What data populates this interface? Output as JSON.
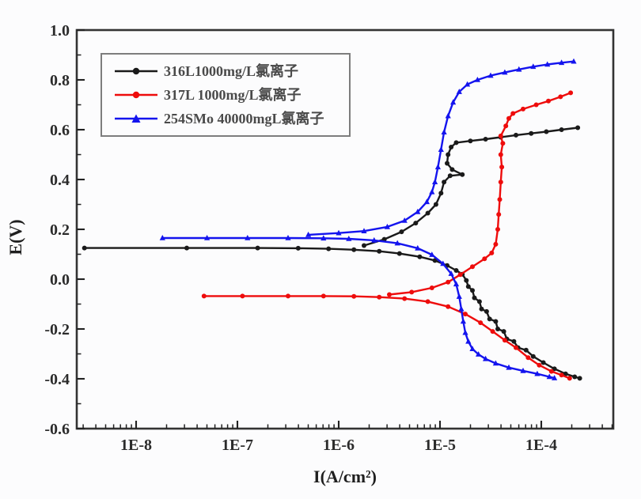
{
  "chart_data": {
    "type": "line",
    "title": "",
    "xlabel": "I(A/cm²)",
    "ylabel": "E(V)",
    "x_scale": "log10",
    "xlim_log10": [
      -8.586,
      -3.29
    ],
    "ylim": [
      -0.6,
      1.0
    ],
    "grid": false,
    "legend_position": "top-left",
    "frame_color": "#333333",
    "tick_label_color": "#2b2b2b",
    "x_ticks": [
      {
        "log10": -8,
        "label": "1E-8"
      },
      {
        "log10": -7,
        "label": "1E-7"
      },
      {
        "log10": -6,
        "label": "1E-6"
      },
      {
        "log10": -5,
        "label": "1E-5"
      },
      {
        "log10": -4,
        "label": "1E-4"
      }
    ],
    "y_ticks": [
      {
        "value": 1.0,
        "label": "1.0"
      },
      {
        "value": 0.8,
        "label": "0.8"
      },
      {
        "value": 0.6,
        "label": "0.6"
      },
      {
        "value": 0.4,
        "label": "0.4"
      },
      {
        "value": 0.2,
        "label": "0.2"
      },
      {
        "value": 0.0,
        "label": "0.0"
      },
      {
        "value": -0.2,
        "label": "-0.2"
      },
      {
        "value": -0.4,
        "label": "-0.4"
      },
      {
        "value": -0.6,
        "label": "-0.6"
      }
    ],
    "y_minor_step": 0.1,
    "series": [
      {
        "name": "316L1000mg/L氯离子",
        "color": "#1a1a1a",
        "marker": "circle",
        "corrosion_potential_V": 0.12,
        "branches": [
          [
            [
              -8.51,
              0.125
            ],
            [
              -7.5,
              0.125
            ],
            [
              -6.8,
              0.125
            ],
            [
              -6.4,
              0.124
            ],
            [
              -6.1,
              0.122
            ],
            [
              -5.85,
              0.118
            ],
            [
              -5.6,
              0.112
            ],
            [
              -5.4,
              0.103
            ],
            [
              -5.2,
              0.09
            ],
            [
              -5.05,
              0.075
            ],
            [
              -4.93,
              0.055
            ],
            [
              -4.84,
              0.035
            ],
            [
              -4.78,
              0.02
            ],
            [
              -4.74,
              -0.005
            ],
            [
              -4.72,
              -0.03
            ],
            [
              -4.68,
              -0.045
            ],
            [
              -4.66,
              -0.075
            ],
            [
              -4.61,
              -0.09
            ],
            [
              -4.59,
              -0.12
            ],
            [
              -4.54,
              -0.13
            ],
            [
              -4.51,
              -0.16
            ],
            [
              -4.45,
              -0.17
            ],
            [
              -4.43,
              -0.2
            ],
            [
              -4.37,
              -0.21
            ],
            [
              -4.34,
              -0.24
            ],
            [
              -4.27,
              -0.25
            ],
            [
              -4.23,
              -0.275
            ],
            [
              -4.15,
              -0.285
            ],
            [
              -4.08,
              -0.31
            ],
            [
              -3.98,
              -0.335
            ],
            [
              -3.87,
              -0.36
            ],
            [
              -3.76,
              -0.38
            ],
            [
              -3.67,
              -0.392
            ],
            [
              -3.62,
              -0.398
            ]
          ],
          [
            [
              -5.75,
              0.135
            ],
            [
              -5.55,
              0.16
            ],
            [
              -5.38,
              0.19
            ],
            [
              -5.24,
              0.225
            ],
            [
              -5.12,
              0.265
            ],
            [
              -5.04,
              0.3
            ],
            [
              -4.99,
              0.345
            ],
            [
              -4.96,
              0.39
            ],
            [
              -4.9,
              0.415
            ],
            [
              -4.78,
              0.42
            ],
            [
              -4.88,
              0.44
            ],
            [
              -4.93,
              0.465
            ],
            [
              -4.92,
              0.5
            ],
            [
              -4.89,
              0.53
            ],
            [
              -4.84,
              0.548
            ],
            [
              -4.7,
              0.555
            ],
            [
              -4.55,
              0.562
            ],
            [
              -4.4,
              0.57
            ],
            [
              -4.25,
              0.578
            ],
            [
              -4.1,
              0.585
            ],
            [
              -3.95,
              0.592
            ],
            [
              -3.8,
              0.6
            ],
            [
              -3.64,
              0.608
            ]
          ]
        ]
      },
      {
        "name": "317L 1000mg/L氯离子",
        "color": "#ee0c0c",
        "marker": "circle",
        "corrosion_potential_V": -0.07,
        "branches": [
          [
            [
              -7.33,
              -0.068
            ],
            [
              -6.95,
              -0.068
            ],
            [
              -6.5,
              -0.068
            ],
            [
              -6.15,
              -0.068
            ],
            [
              -5.85,
              -0.069
            ],
            [
              -5.6,
              -0.072
            ],
            [
              -5.35,
              -0.078
            ],
            [
              -5.12,
              -0.09
            ],
            [
              -4.92,
              -0.11
            ],
            [
              -4.75,
              -0.14
            ],
            [
              -4.6,
              -0.175
            ],
            [
              -4.48,
              -0.21
            ],
            [
              -4.36,
              -0.245
            ],
            [
              -4.25,
              -0.275
            ],
            [
              -4.13,
              -0.315
            ],
            [
              -4.02,
              -0.345
            ],
            [
              -3.9,
              -0.37
            ],
            [
              -3.8,
              -0.385
            ],
            [
              -3.72,
              -0.398
            ]
          ],
          [
            [
              -5.5,
              -0.062
            ],
            [
              -5.28,
              -0.052
            ],
            [
              -5.08,
              -0.035
            ],
            [
              -4.92,
              -0.012
            ],
            [
              -4.8,
              0.018
            ],
            [
              -4.68,
              0.05
            ],
            [
              -4.56,
              0.082
            ],
            [
              -4.49,
              0.105
            ],
            [
              -4.45,
              0.14
            ],
            [
              -4.43,
              0.2
            ],
            [
              -4.42,
              0.26
            ],
            [
              -4.41,
              0.32
            ],
            [
              -4.4,
              0.39
            ],
            [
              -4.39,
              0.45
            ],
            [
              -4.4,
              0.5
            ],
            [
              -4.38,
              0.545
            ],
            [
              -4.4,
              0.575
            ],
            [
              -4.35,
              0.615
            ],
            [
              -4.32,
              0.645
            ],
            [
              -4.28,
              0.665
            ],
            [
              -4.18,
              0.683
            ],
            [
              -4.05,
              0.7
            ],
            [
              -3.93,
              0.715
            ],
            [
              -3.81,
              0.732
            ],
            [
              -3.71,
              0.748
            ]
          ]
        ]
      },
      {
        "name": "254SMo 40000mgL氯离子",
        "color": "#1414ee",
        "marker": "triangle",
        "corrosion_potential_V": 0.165,
        "branches": [
          [
            [
              -7.74,
              0.165
            ],
            [
              -7.3,
              0.165
            ],
            [
              -6.9,
              0.165
            ],
            [
              -6.5,
              0.165
            ],
            [
              -6.15,
              0.164
            ],
            [
              -5.9,
              0.162
            ],
            [
              -5.65,
              0.156
            ],
            [
              -5.42,
              0.144
            ],
            [
              -5.22,
              0.124
            ],
            [
              -5.08,
              0.098
            ],
            [
              -4.97,
              0.062
            ],
            [
              -4.89,
              0.022
            ],
            [
              -4.84,
              -0.02
            ],
            [
              -4.81,
              -0.07
            ],
            [
              -4.79,
              -0.12
            ],
            [
              -4.77,
              -0.17
            ],
            [
              -4.75,
              -0.215
            ],
            [
              -4.72,
              -0.25
            ],
            [
              -4.68,
              -0.28
            ],
            [
              -4.62,
              -0.302
            ],
            [
              -4.55,
              -0.32
            ],
            [
              -4.45,
              -0.338
            ],
            [
              -4.32,
              -0.355
            ],
            [
              -4.18,
              -0.368
            ],
            [
              -4.04,
              -0.38
            ],
            [
              -3.92,
              -0.392
            ],
            [
              -3.87,
              -0.397
            ]
          ],
          [
            [
              -6.3,
              0.178
            ],
            [
              -6.0,
              0.185
            ],
            [
              -5.75,
              0.193
            ],
            [
              -5.52,
              0.21
            ],
            [
              -5.35,
              0.235
            ],
            [
              -5.22,
              0.27
            ],
            [
              -5.13,
              0.31
            ],
            [
              -5.08,
              0.35
            ],
            [
              -5.05,
              0.39
            ],
            [
              -5.02,
              0.45
            ],
            [
              -4.99,
              0.52
            ],
            [
              -4.96,
              0.59
            ],
            [
              -4.92,
              0.655
            ],
            [
              -4.87,
              0.71
            ],
            [
              -4.81,
              0.752
            ],
            [
              -4.73,
              0.782
            ],
            [
              -4.63,
              0.8
            ],
            [
              -4.5,
              0.817
            ],
            [
              -4.36,
              0.83
            ],
            [
              -4.22,
              0.842
            ],
            [
              -4.08,
              0.853
            ],
            [
              -3.94,
              0.862
            ],
            [
              -3.8,
              0.869
            ],
            [
              -3.68,
              0.874
            ]
          ]
        ]
      }
    ]
  }
}
